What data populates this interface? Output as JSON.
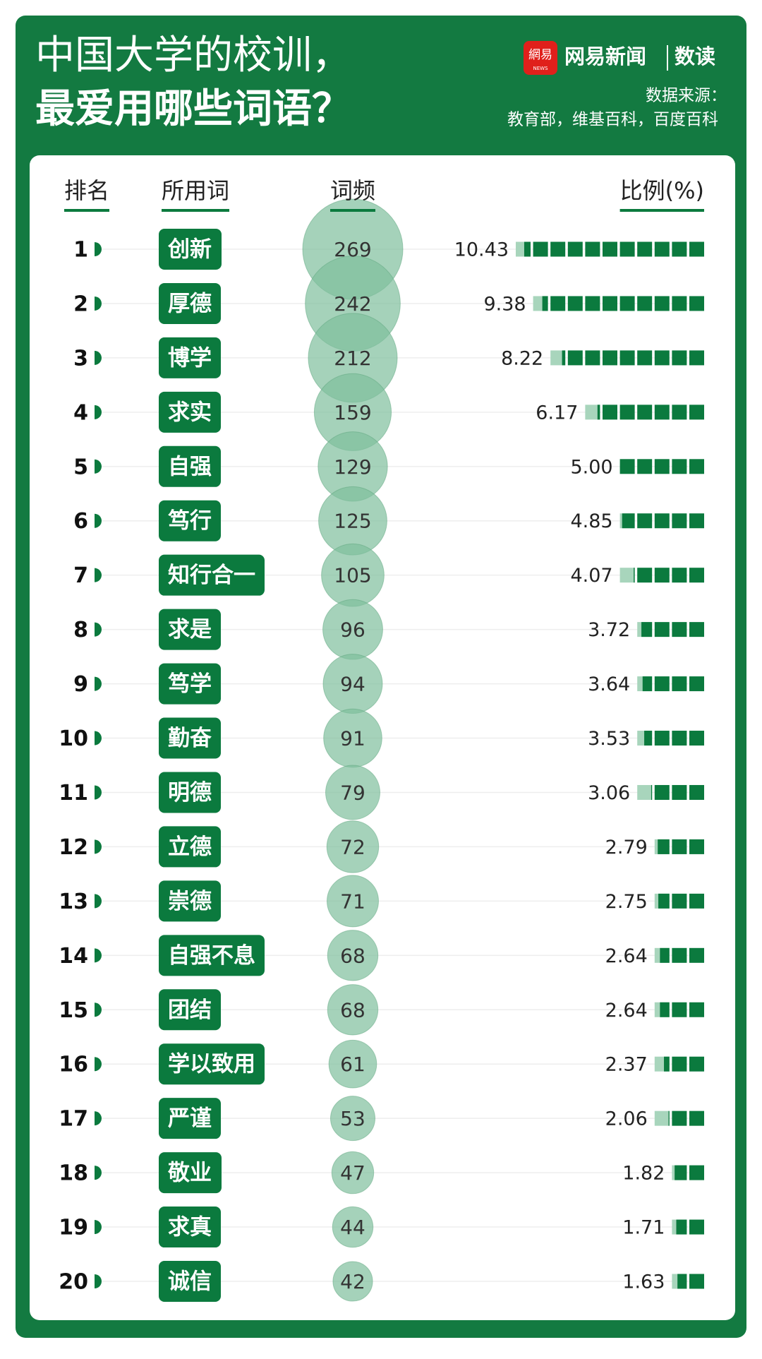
{
  "chart_data": {
    "type": "ranking",
    "title": "中国大学的校训，",
    "subtitle": "最爱用哪些词语？",
    "brand": "网易新闻",
    "brand_section": "数读",
    "logo_text": "網易",
    "logo_subtext": "NEWS",
    "source_label": "数据来源：",
    "source": "教育部，维基百科，百度百科",
    "columns": [
      "排名",
      "所用词",
      "词频",
      "比例(%)"
    ],
    "ranks": [
      1,
      2,
      3,
      4,
      5,
      6,
      7,
      8,
      9,
      10,
      11,
      12,
      13,
      14,
      15,
      16,
      17,
      18,
      19,
      20
    ],
    "categories": [
      "创新",
      "厚德",
      "博学",
      "求实",
      "自强",
      "笃行",
      "知行合一",
      "求是",
      "笃学",
      "勤奋",
      "明德",
      "立德",
      "崇德",
      "自强不息",
      "团结",
      "学以致用",
      "严谨",
      "敬业",
      "求真",
      "诚信"
    ],
    "series": [
      {
        "name": "词频",
        "color": "#7fbf9c",
        "values": [
          269,
          242,
          212,
          159,
          129,
          125,
          105,
          96,
          94,
          91,
          79,
          72,
          71,
          68,
          68,
          61,
          53,
          47,
          44,
          42
        ]
      },
      {
        "name": "比例(%)",
        "color": "#0b7a3e",
        "values": [
          10.43,
          9.38,
          8.22,
          6.17,
          5.0,
          4.85,
          4.07,
          3.72,
          3.64,
          3.53,
          3.06,
          2.79,
          2.75,
          2.64,
          2.64,
          2.37,
          2.06,
          1.82,
          1.71,
          1.63
        ],
        "value_labels": [
          "10.43",
          "9.38",
          "8.22",
          "6.17",
          "5.00",
          "4.85",
          "4.07",
          "3.72",
          "3.64",
          "3.53",
          "3.06",
          "2.79",
          "2.75",
          "2.64",
          "2.64",
          "2.37",
          "2.06",
          "1.82",
          "1.71",
          "1.63"
        ]
      }
    ]
  }
}
